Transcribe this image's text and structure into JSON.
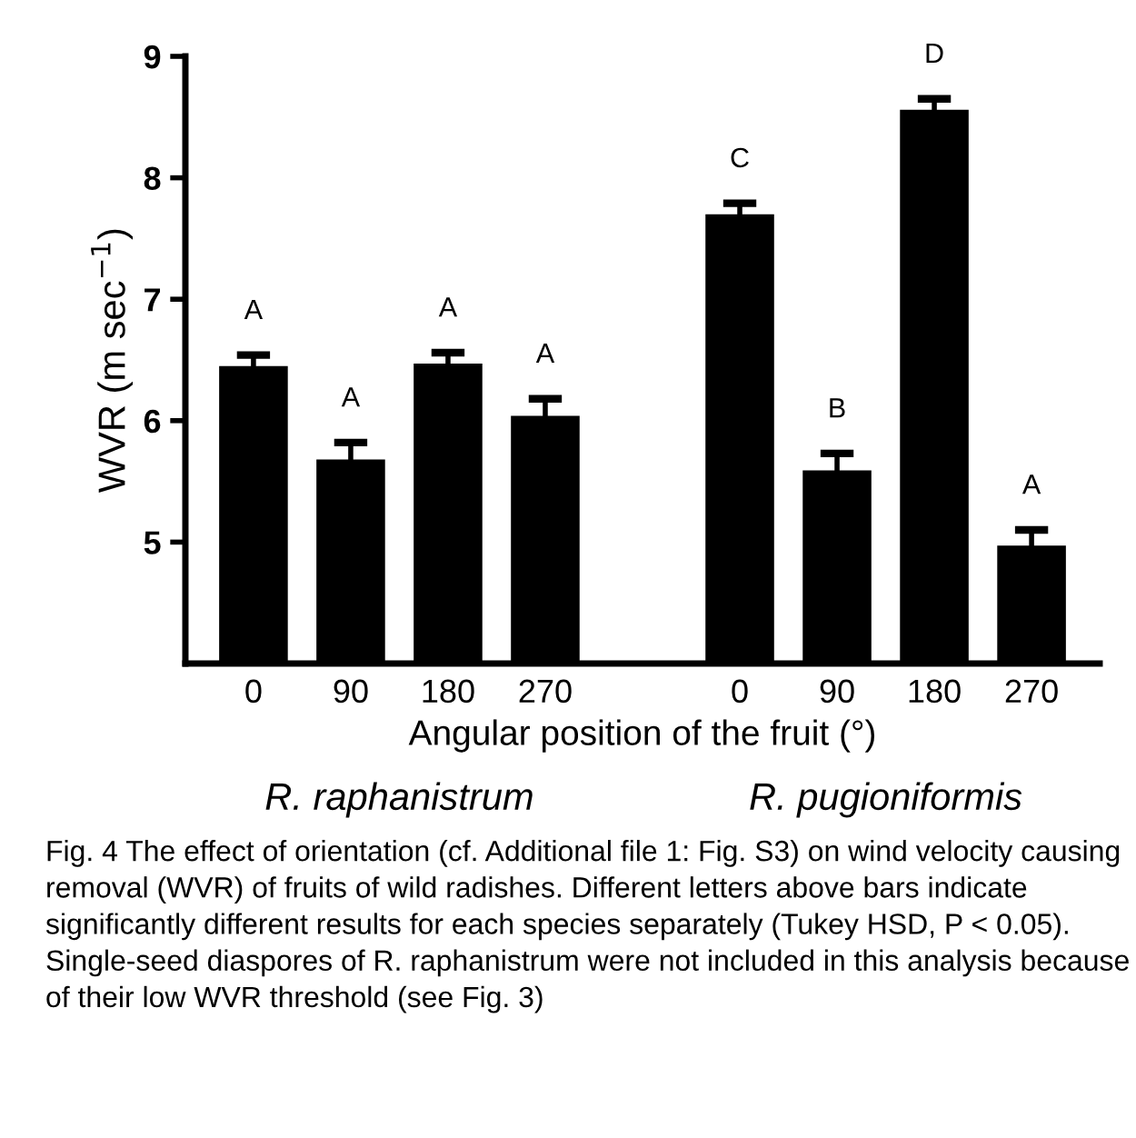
{
  "chart_data": {
    "type": "bar",
    "categories": [
      "0",
      "90",
      "180",
      "270",
      null,
      "0",
      "90",
      "180",
      "270"
    ],
    "values": [
      6.44,
      5.67,
      6.46,
      6.03,
      null,
      7.69,
      5.58,
      8.55,
      4.96
    ],
    "errors": [
      [
        6.44,
        6.54
      ],
      [
        5.67,
        5.82
      ],
      [
        6.46,
        6.56
      ],
      [
        6.03,
        6.18
      ],
      null,
      [
        7.69,
        7.79
      ],
      [
        5.58,
        5.73
      ],
      [
        8.55,
        8.65
      ],
      [
        4.96,
        5.1
      ]
    ],
    "color": "#000000",
    "ylim": [
      4,
      9
    ],
    "yticks": [
      5,
      6,
      7,
      8,
      9
    ],
    "grid": false,
    "legend": false,
    "ylabel": "WVR (m sec$^{−1}$)",
    "xlabel": "Angular position of the fruit (°)",
    "annotations": [
      "A",
      "A",
      "A",
      "A",
      "C",
      "B",
      "D",
      "A",
      "R. raphanistrum",
      "R. pugioniformis",
      "Fig. 4 The effect of orientation (cf. Additional file 1: Fig. S3) on wind velocity causing removal (WVR) of fruits of wild radishes. Different letters above bars indicate significantly different results for each species separately (Tukey HSD, P < 0.05). Single-seed diaspores of R. raphanistrum were not included in this analysis because of their low WVR threshold (see Fig. 3)"
    ]
  }
}
